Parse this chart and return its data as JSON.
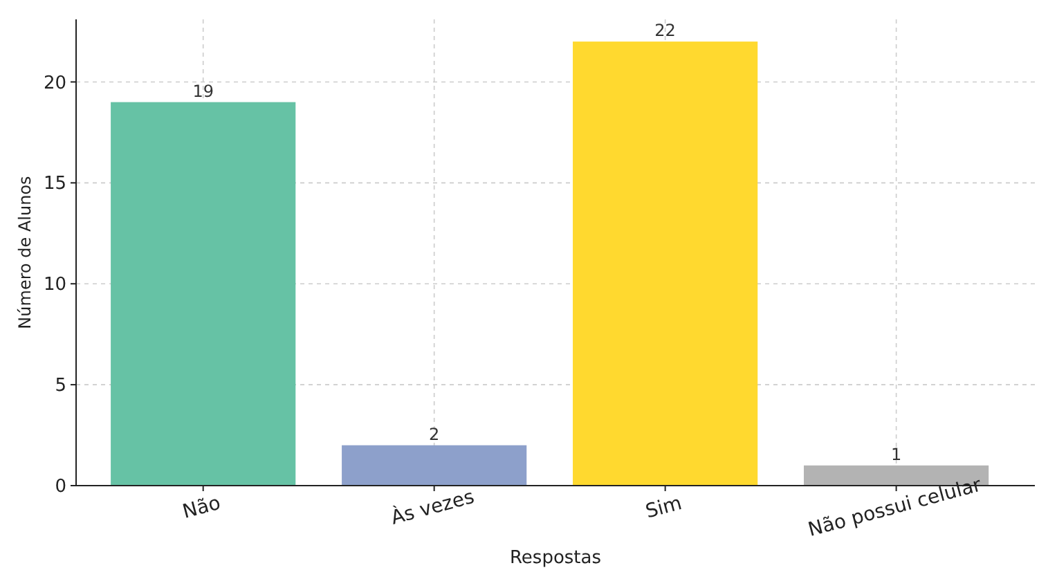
{
  "chart_data": {
    "type": "bar",
    "xlabel": "Respostas",
    "ylabel": "Número de Alunos",
    "categories": [
      "Não",
      "Às vezes",
      "Sim",
      "Não possui celular"
    ],
    "values": [
      19,
      2,
      22,
      1
    ],
    "colors": [
      "#66c2a5",
      "#8da0cb",
      "#ffd92f",
      "#b3b3b3"
    ],
    "ylim": [
      0,
      23.1
    ],
    "yticks": [
      0,
      5,
      10,
      15,
      20
    ],
    "grid": true,
    "data_labels": true
  }
}
